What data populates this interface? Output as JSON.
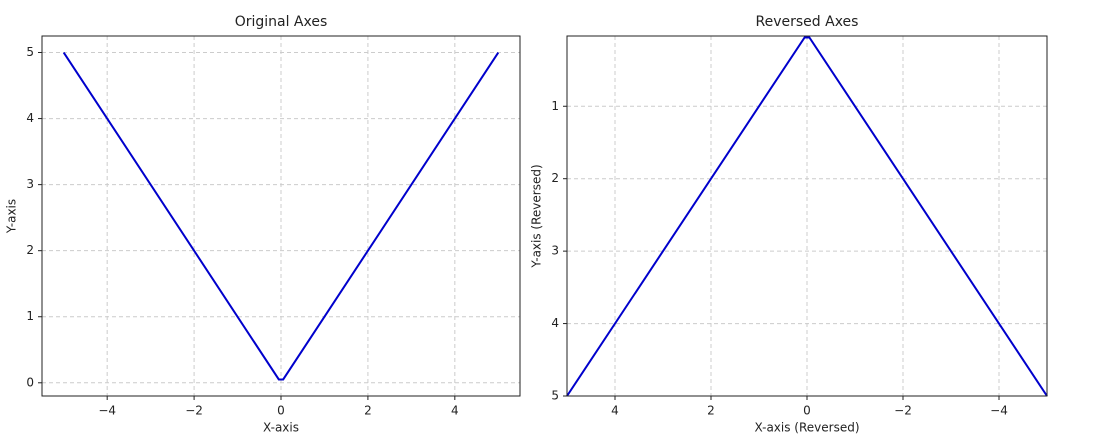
{
  "chart_data": [
    {
      "type": "line",
      "title": "Original Axes",
      "x_label": "X-axis",
      "y_label": "Y-axis",
      "series": [
        {
          "color": "#0000cc",
          "x": [
            -5,
            -0.05,
            0.05,
            5
          ],
          "values": [
            5,
            0.05,
            0.05,
            5
          ]
        }
      ],
      "xlim": [
        -5.5,
        5.5
      ],
      "ylim": [
        -0.2,
        5.25
      ],
      "xticks": [
        {
          "value": -4,
          "label": "−4"
        },
        {
          "value": -2,
          "label": "−2"
        },
        0,
        2,
        4
      ],
      "yticks": [
        0,
        1,
        2,
        3,
        4,
        5
      ],
      "grid": true
    },
    {
      "type": "line",
      "title": "Reversed Axes",
      "x_label": "X-axis (Reversed)",
      "y_label": "Y-axis (Reversed)",
      "series": [
        {
          "color": "#0000cc",
          "x": [
            -5,
            -0.05,
            0.05,
            5
          ],
          "values": [
            5,
            0.05,
            0.05,
            5
          ]
        }
      ],
      "xlim": [
        5,
        -5
      ],
      "ylim": [
        5,
        0.03
      ],
      "xticks": [
        4,
        2,
        0,
        {
          "value": -2,
          "label": "−2"
        },
        {
          "value": -4,
          "label": "−4"
        }
      ],
      "yticks": [
        1,
        2,
        3,
        4,
        5
      ],
      "grid": true
    }
  ]
}
